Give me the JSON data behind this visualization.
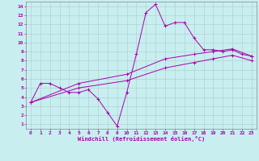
{
  "xlabel": "Windchill (Refroidissement éolien,°C)",
  "bg_color": "#c8eef0",
  "line_color": "#aa00aa",
  "grid_color": "#aacccc",
  "xlim": [
    -0.5,
    23.5
  ],
  "ylim": [
    0.5,
    14.5
  ],
  "xticks": [
    0,
    1,
    2,
    3,
    4,
    5,
    6,
    7,
    8,
    9,
    10,
    11,
    12,
    13,
    14,
    15,
    16,
    17,
    18,
    19,
    20,
    21,
    22,
    23
  ],
  "yticks": [
    1,
    2,
    3,
    4,
    5,
    6,
    7,
    8,
    9,
    10,
    11,
    12,
    13,
    14
  ],
  "line1_x": [
    0,
    1,
    2,
    3,
    4,
    5,
    6,
    7,
    8,
    9,
    10,
    11,
    12,
    13,
    14,
    15,
    16,
    17,
    18,
    19,
    20,
    21,
    22,
    23
  ],
  "line1_y": [
    3.4,
    5.5,
    5.5,
    5.0,
    4.5,
    4.5,
    4.8,
    3.8,
    2.3,
    0.8,
    4.5,
    8.7,
    13.3,
    14.2,
    11.8,
    12.2,
    12.2,
    10.5,
    9.2,
    9.2,
    9.0,
    9.2,
    8.7,
    8.5
  ],
  "line2_x": [
    0,
    5,
    10,
    14,
    17,
    19,
    21,
    23
  ],
  "line2_y": [
    3.4,
    5.5,
    6.5,
    8.2,
    8.7,
    9.0,
    9.3,
    8.5
  ],
  "line3_x": [
    0,
    5,
    10,
    14,
    17,
    19,
    21,
    23
  ],
  "line3_y": [
    3.4,
    5.0,
    5.8,
    7.2,
    7.8,
    8.2,
    8.6,
    8.0
  ]
}
